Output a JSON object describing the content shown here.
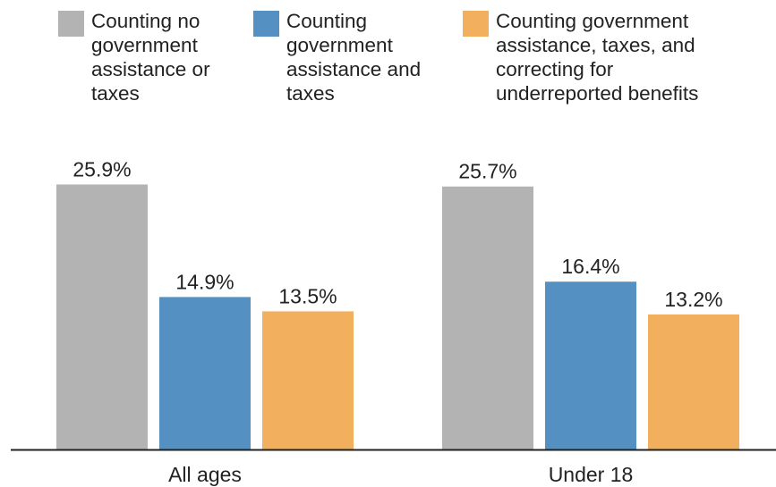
{
  "chart_data": {
    "type": "bar",
    "categories": [
      "All ages",
      "Under 18"
    ],
    "series": [
      {
        "name": "Counting no\ngovernment\nassistance or\ntaxes",
        "values": [
          25.9,
          25.7
        ],
        "labels": [
          "25.9%",
          "25.7%"
        ],
        "color": "#b3b3b3"
      },
      {
        "name": "Counting\ngovernment\nassistance and\ntaxes",
        "values": [
          14.9,
          16.4
        ],
        "labels": [
          "14.9%",
          "16.4%"
        ],
        "color": "#5590c2"
      },
      {
        "name": "Counting government\nassistance, taxes, and\ncorrecting for\nunderreported benefits",
        "values": [
          13.5,
          13.2
        ],
        "labels": [
          "13.5%",
          "13.2%"
        ],
        "color": "#f2b05e"
      }
    ],
    "unit": "%",
    "ylim": [
      0,
      30
    ],
    "grid": false,
    "legend": "top"
  }
}
